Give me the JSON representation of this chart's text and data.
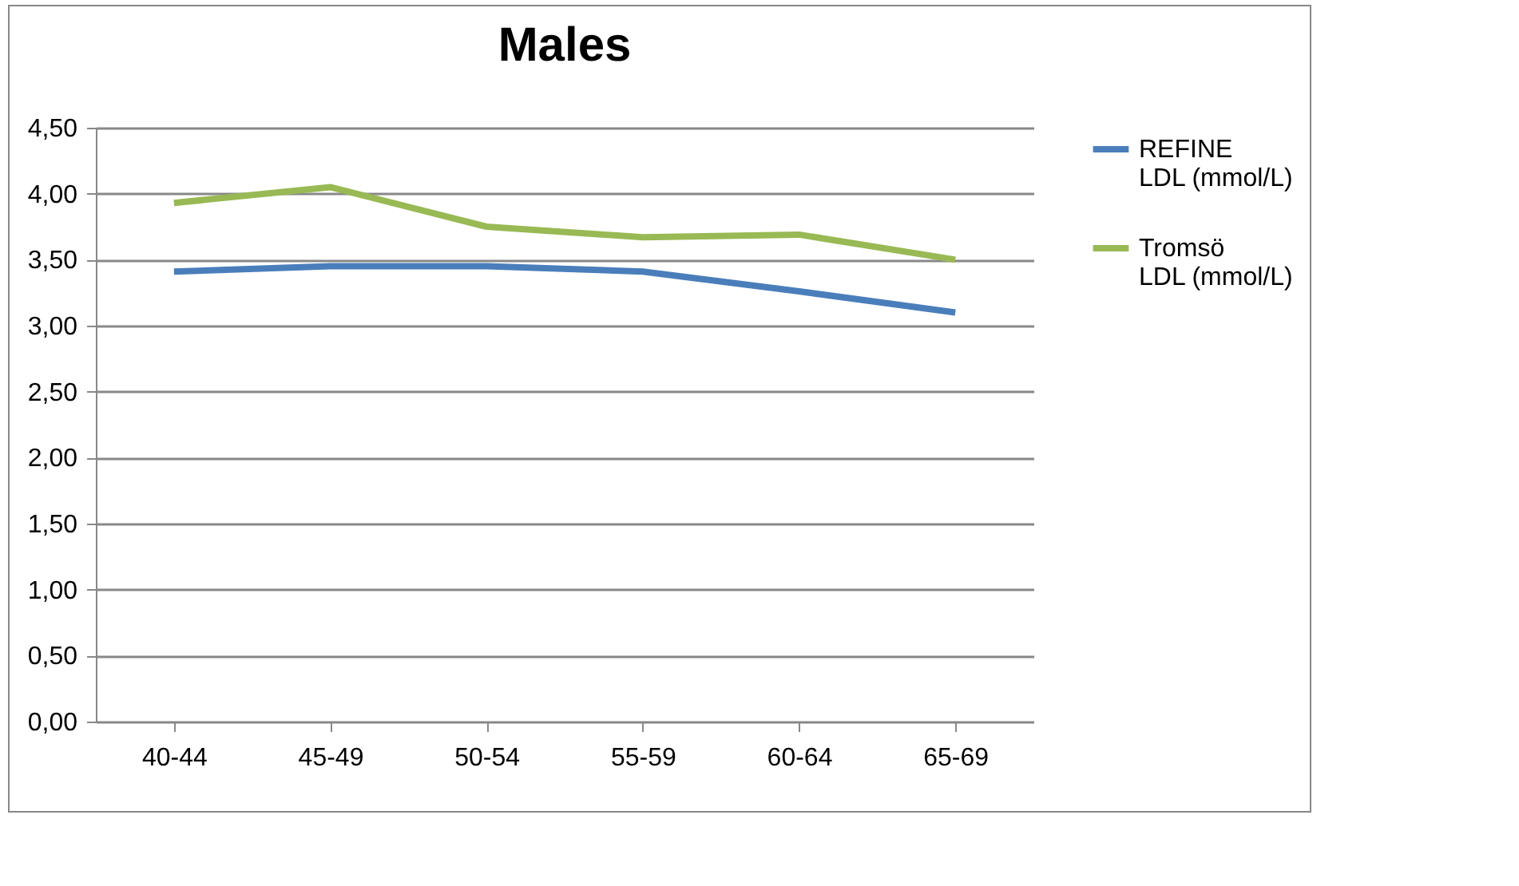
{
  "chart_data": {
    "type": "line",
    "title": "Males",
    "categories": [
      "40-44",
      "45-49",
      "50-54",
      "55-59",
      "60-64",
      "65-69"
    ],
    "series": [
      {
        "name": "REFINE LDL (mmol/L)",
        "color": "#4a7ebb",
        "values": [
          3.41,
          3.45,
          3.45,
          3.41,
          3.26,
          3.1
        ]
      },
      {
        "name": "Tromsö LDL (mmol/L)",
        "color": "#98b954",
        "values": [
          3.93,
          4.05,
          3.75,
          3.67,
          3.69,
          3.5
        ]
      }
    ],
    "ylim": [
      0,
      4.5
    ],
    "yticks": [
      {
        "value": 0,
        "label": "0,00"
      },
      {
        "value": 0.5,
        "label": "0,50"
      },
      {
        "value": 1,
        "label": "1,00"
      },
      {
        "value": 1.5,
        "label": "1,50"
      },
      {
        "value": 2,
        "label": "2,00"
      },
      {
        "value": 2.5,
        "label": "2,50"
      },
      {
        "value": 3,
        "label": "3,00"
      },
      {
        "value": 3.5,
        "label": "3,50"
      },
      {
        "value": 4,
        "label": "4,00"
      },
      {
        "value": 4.5,
        "label": "4,50"
      }
    ],
    "grid": "y",
    "legend": "right",
    "marker": "none",
    "line_style": "solid"
  }
}
